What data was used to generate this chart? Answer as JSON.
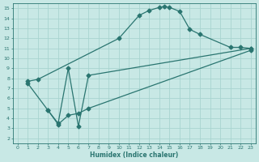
{
  "title": "",
  "xlabel": "Humidex (Indice chaleur)",
  "ylabel": "",
  "bg_color": "#c8e8e5",
  "grid_color": "#a8d4d0",
  "line_color": "#2a7570",
  "xlim": [
    -0.5,
    23.5
  ],
  "ylim": [
    1.5,
    15.5
  ],
  "xticks": [
    0,
    1,
    2,
    3,
    4,
    5,
    6,
    7,
    8,
    9,
    10,
    11,
    12,
    13,
    14,
    15,
    16,
    17,
    18,
    19,
    20,
    21,
    22,
    23
  ],
  "yticks": [
    2,
    3,
    4,
    5,
    6,
    7,
    8,
    9,
    10,
    11,
    12,
    13,
    14,
    15
  ],
  "line1_x": [
    1,
    2,
    10,
    12,
    13,
    14,
    14.5,
    15,
    16,
    17,
    18,
    21,
    22,
    23
  ],
  "line1_y": [
    7.7,
    7.9,
    12.0,
    14.3,
    14.8,
    15.1,
    15.2,
    15.1,
    14.7,
    12.9,
    12.4,
    11.1,
    11.1,
    11.0
  ],
  "line2_x": [
    1,
    3,
    4,
    5,
    6,
    7,
    23
  ],
  "line2_y": [
    7.5,
    4.8,
    3.5,
    9.0,
    3.2,
    8.3,
    11.0
  ],
  "line3_x": [
    3,
    4,
    5,
    6,
    7,
    23
  ],
  "line3_y": [
    4.8,
    3.4,
    4.3,
    4.5,
    5.0,
    10.8
  ],
  "marker": "D",
  "markersize": 2.5,
  "linewidth": 0.9
}
